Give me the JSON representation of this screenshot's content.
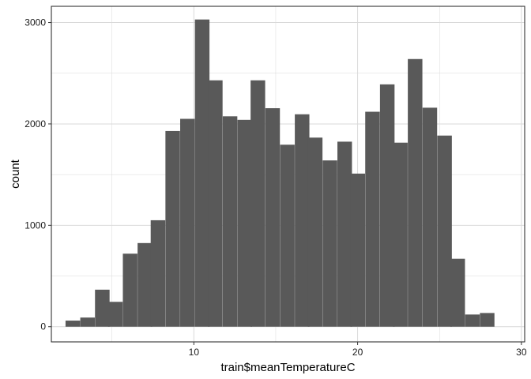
{
  "chart_data": {
    "type": "bar",
    "subtype": "histogram",
    "xlabel": "train$meanTemperatureC",
    "ylabel": "count",
    "xlim": [
      1.3,
      30.2
    ],
    "ylim": [
      -150,
      3160
    ],
    "grid": true,
    "bin_width": 0.87,
    "x_ticks": [
      10,
      20,
      30
    ],
    "x_tick_labels": [
      "10",
      "20",
      "30"
    ],
    "y_ticks": [
      0,
      1000,
      2000,
      3000
    ],
    "y_tick_labels": [
      "0",
      "1000",
      "2000",
      "3000"
    ],
    "bins": [
      {
        "x": 2.6,
        "count": 60
      },
      {
        "x": 3.5,
        "count": 90
      },
      {
        "x": 4.4,
        "count": 365
      },
      {
        "x": 5.2,
        "count": 245
      },
      {
        "x": 6.1,
        "count": 720
      },
      {
        "x": 7.0,
        "count": 825
      },
      {
        "x": 7.8,
        "count": 1050
      },
      {
        "x": 8.7,
        "count": 1930
      },
      {
        "x": 9.6,
        "count": 2050
      },
      {
        "x": 10.5,
        "count": 3030
      },
      {
        "x": 11.3,
        "count": 2430
      },
      {
        "x": 12.2,
        "count": 2075
      },
      {
        "x": 13.1,
        "count": 2040
      },
      {
        "x": 13.9,
        "count": 2430
      },
      {
        "x": 14.8,
        "count": 2155
      },
      {
        "x": 15.7,
        "count": 1795
      },
      {
        "x": 16.6,
        "count": 2095
      },
      {
        "x": 17.4,
        "count": 1865
      },
      {
        "x": 18.3,
        "count": 1640
      },
      {
        "x": 19.2,
        "count": 1825
      },
      {
        "x": 20.0,
        "count": 1510
      },
      {
        "x": 20.9,
        "count": 2120
      },
      {
        "x": 21.8,
        "count": 2390
      },
      {
        "x": 22.6,
        "count": 1815
      },
      {
        "x": 23.5,
        "count": 2640
      },
      {
        "x": 24.4,
        "count": 2160
      },
      {
        "x": 25.3,
        "count": 1885
      },
      {
        "x": 26.1,
        "count": 670
      },
      {
        "x": 27.0,
        "count": 120
      },
      {
        "x": 27.9,
        "count": 135
      }
    ],
    "bar_color": "#595959",
    "grid_color": "#d9d9d9",
    "axis_color": "#333333"
  }
}
